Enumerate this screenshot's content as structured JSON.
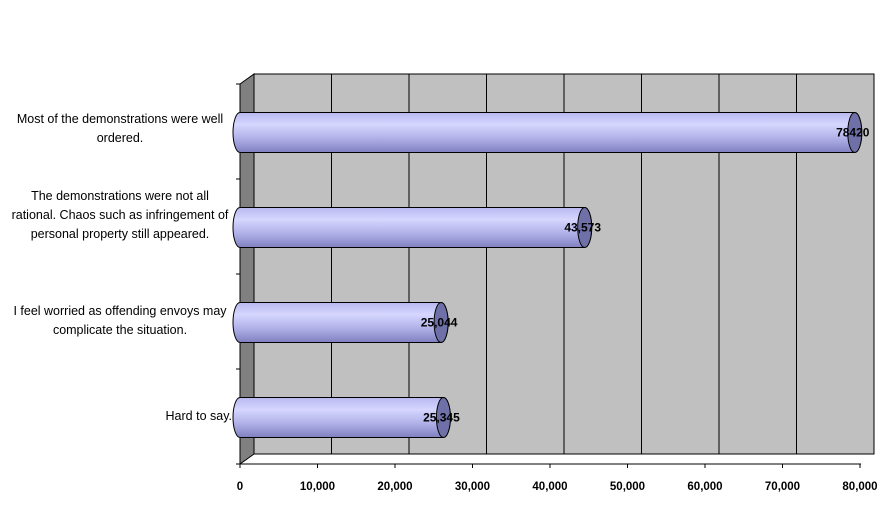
{
  "chart_data": {
    "type": "bar",
    "orientation": "horizontal",
    "title": "",
    "xlabel": "",
    "ylabel": "",
    "categories": [
      "Most of the demonstrations were well ordered.",
      "The demonstrations were not all rational. Chaos such as infringement of personal property still appeared.",
      "I feel worried as offending envoys may complicate the situation.",
      "Hard to say."
    ],
    "values": [
      78420,
      43573,
      25044,
      25345
    ],
    "data_labels": [
      "78420",
      "43,573",
      "25,044",
      "25,345"
    ],
    "xlim": [
      0,
      80000
    ],
    "x_ticks": [
      "0",
      "10,000",
      "20,000",
      "30,000",
      "40,000",
      "50,000",
      "60,000",
      "70,000",
      "80,000"
    ],
    "grid": true,
    "legend": "none",
    "colors": {
      "plot_background": "#c0c0c0",
      "side_wall": "#808080",
      "gridline": "#000000",
      "bar_fill_light": "#ccccff",
      "bar_fill_dark": "#8080c0",
      "bar_cap": "#7070a8"
    }
  }
}
